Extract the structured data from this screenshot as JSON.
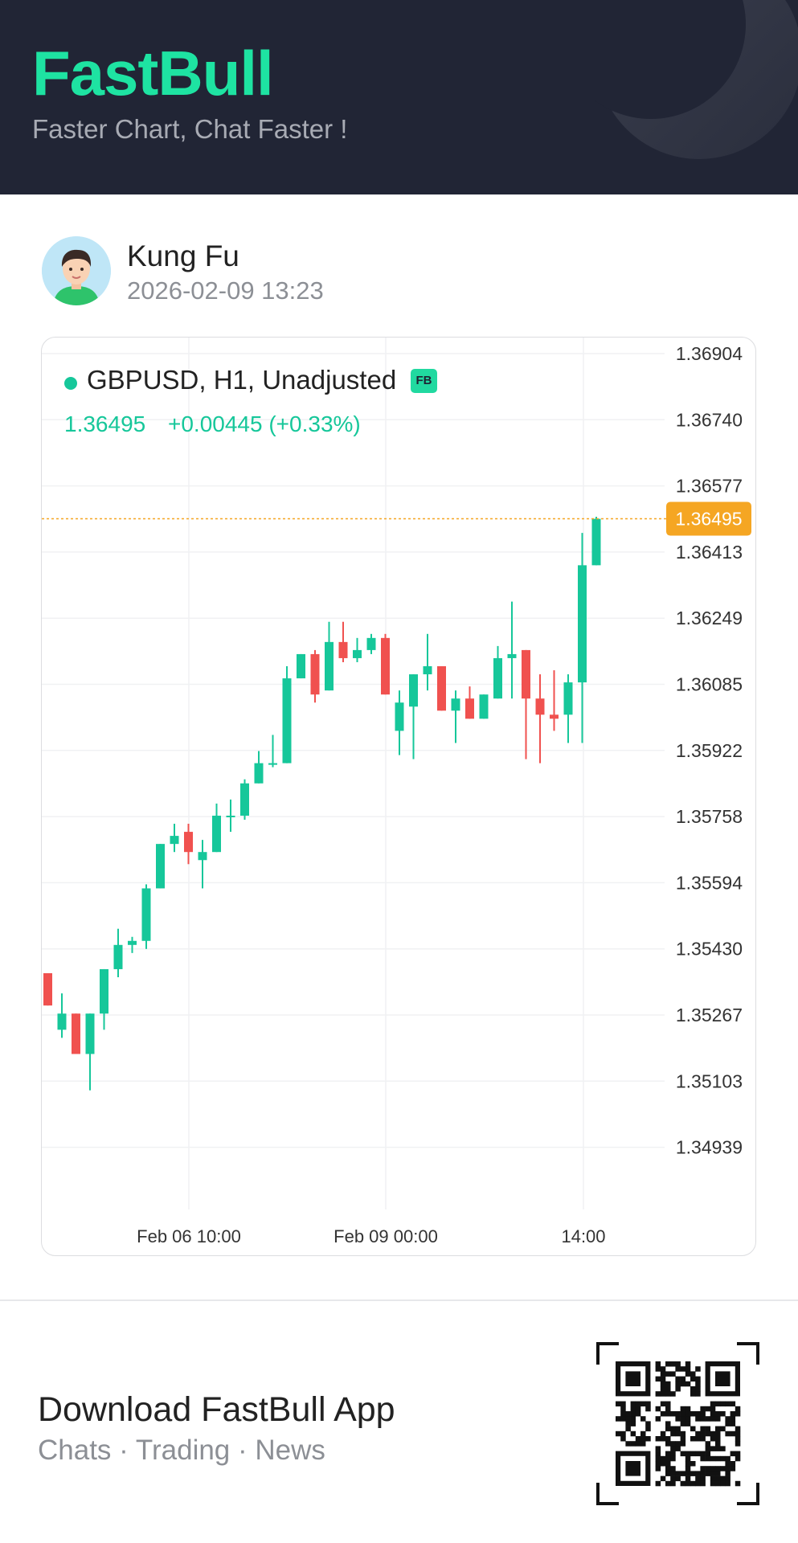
{
  "header": {
    "brand": "FastBull",
    "tagline": "Faster Chart, Chat Faster !"
  },
  "post": {
    "username": "Kung Fu",
    "datetime": "2026-02-09 13:23"
  },
  "chart_card": {
    "instrument": "GBPUSD, H1, Unadjusted",
    "badge": "FB",
    "last_price": "1.36495",
    "change": "+0.00445 (+0.33%)",
    "colors": {
      "up": "#16c79a",
      "down": "#f0514f",
      "price_line": "#f5a623"
    }
  },
  "chart_data": {
    "type": "candlestick",
    "y_ticks": [
      "1.36904",
      "1.36740",
      "1.36577",
      "1.36413",
      "1.36249",
      "1.36085",
      "1.35922",
      "1.35758",
      "1.35594",
      "1.35430",
      "1.35267",
      "1.35103",
      "1.34939"
    ],
    "x_ticks": [
      "Feb 06 10:00",
      "Feb 09 00:00",
      "14:00"
    ],
    "current_price": 1.36495,
    "current_price_label": "1.36495",
    "grid": true,
    "candles": [
      {
        "o": 1.3537,
        "h": 1.3537,
        "l": 1.353,
        "c": 1.3529
      },
      {
        "o": 1.3523,
        "h": 1.3532,
        "l": 1.3521,
        "c": 1.3527
      },
      {
        "o": 1.3527,
        "h": 1.3527,
        "l": 1.3517,
        "c": 1.3517
      },
      {
        "o": 1.3517,
        "h": 1.3527,
        "l": 1.3508,
        "c": 1.3527
      },
      {
        "o": 1.3527,
        "h": 1.3537,
        "l": 1.3523,
        "c": 1.3538
      },
      {
        "o": 1.3538,
        "h": 1.3548,
        "l": 1.3536,
        "c": 1.3544
      },
      {
        "o": 1.3544,
        "h": 1.3546,
        "l": 1.3542,
        "c": 1.3545
      },
      {
        "o": 1.3545,
        "h": 1.3559,
        "l": 1.3543,
        "c": 1.3558
      },
      {
        "o": 1.3558,
        "h": 1.3569,
        "l": 1.3558,
        "c": 1.3569
      },
      {
        "o": 1.3569,
        "h": 1.3574,
        "l": 1.3567,
        "c": 1.3571
      },
      {
        "o": 1.3572,
        "h": 1.3574,
        "l": 1.3564,
        "c": 1.3567
      },
      {
        "o": 1.3565,
        "h": 1.357,
        "l": 1.3558,
        "c": 1.3567
      },
      {
        "o": 1.3567,
        "h": 1.3579,
        "l": 1.3567,
        "c": 1.3576
      },
      {
        "o": 1.3576,
        "h": 1.358,
        "l": 1.3572,
        "c": 1.3576
      },
      {
        "o": 1.3576,
        "h": 1.3585,
        "l": 1.3575,
        "c": 1.3584
      },
      {
        "o": 1.3584,
        "h": 1.3592,
        "l": 1.3584,
        "c": 1.3589
      },
      {
        "o": 1.3589,
        "h": 1.3596,
        "l": 1.3588,
        "c": 1.3589
      },
      {
        "o": 1.3589,
        "h": 1.3613,
        "l": 1.359,
        "c": 1.361
      },
      {
        "o": 1.361,
        "h": 1.3616,
        "l": 1.361,
        "c": 1.3616
      },
      {
        "o": 1.3616,
        "h": 1.3617,
        "l": 1.3604,
        "c": 1.3606
      },
      {
        "o": 1.3607,
        "h": 1.3624,
        "l": 1.3608,
        "c": 1.3619
      },
      {
        "o": 1.3619,
        "h": 1.3624,
        "l": 1.3614,
        "c": 1.3615
      },
      {
        "o": 1.3615,
        "h": 1.362,
        "l": 1.3614,
        "c": 1.3617
      },
      {
        "o": 1.3617,
        "h": 1.3621,
        "l": 1.3616,
        "c": 1.362
      },
      {
        "o": 1.362,
        "h": 1.3621,
        "l": 1.3606,
        "c": 1.3606
      },
      {
        "o": 1.3597,
        "h": 1.3607,
        "l": 1.3591,
        "c": 1.3604
      },
      {
        "o": 1.3603,
        "h": 1.3611,
        "l": 1.359,
        "c": 1.3611
      },
      {
        "o": 1.3611,
        "h": 1.3621,
        "l": 1.3607,
        "c": 1.3613
      },
      {
        "o": 1.3613,
        "h": 1.3612,
        "l": 1.3603,
        "c": 1.3602
      },
      {
        "o": 1.3602,
        "h": 1.3607,
        "l": 1.3594,
        "c": 1.3605
      },
      {
        "o": 1.3605,
        "h": 1.3608,
        "l": 1.36,
        "c": 1.36
      },
      {
        "o": 1.36,
        "h": 1.3606,
        "l": 1.36,
        "c": 1.3606
      },
      {
        "o": 1.3605,
        "h": 1.3618,
        "l": 1.3605,
        "c": 1.3615
      },
      {
        "o": 1.3615,
        "h": 1.3629,
        "l": 1.3605,
        "c": 1.3616
      },
      {
        "o": 1.3617,
        "h": 1.3617,
        "l": 1.359,
        "c": 1.3605
      },
      {
        "o": 1.3605,
        "h": 1.3611,
        "l": 1.3589,
        "c": 1.3601
      },
      {
        "o": 1.3601,
        "h": 1.3612,
        "l": 1.3597,
        "c": 1.36
      },
      {
        "o": 1.3601,
        "h": 1.3611,
        "l": 1.3594,
        "c": 1.3609
      },
      {
        "o": 1.3609,
        "h": 1.3646,
        "l": 1.3594,
        "c": 1.3638
      },
      {
        "o": 1.3638,
        "h": 1.365,
        "l": 1.3638,
        "c": 1.36495
      }
    ]
  },
  "footer": {
    "download_title": "Download FastBull App",
    "tags": "Chats · Trading · News"
  }
}
